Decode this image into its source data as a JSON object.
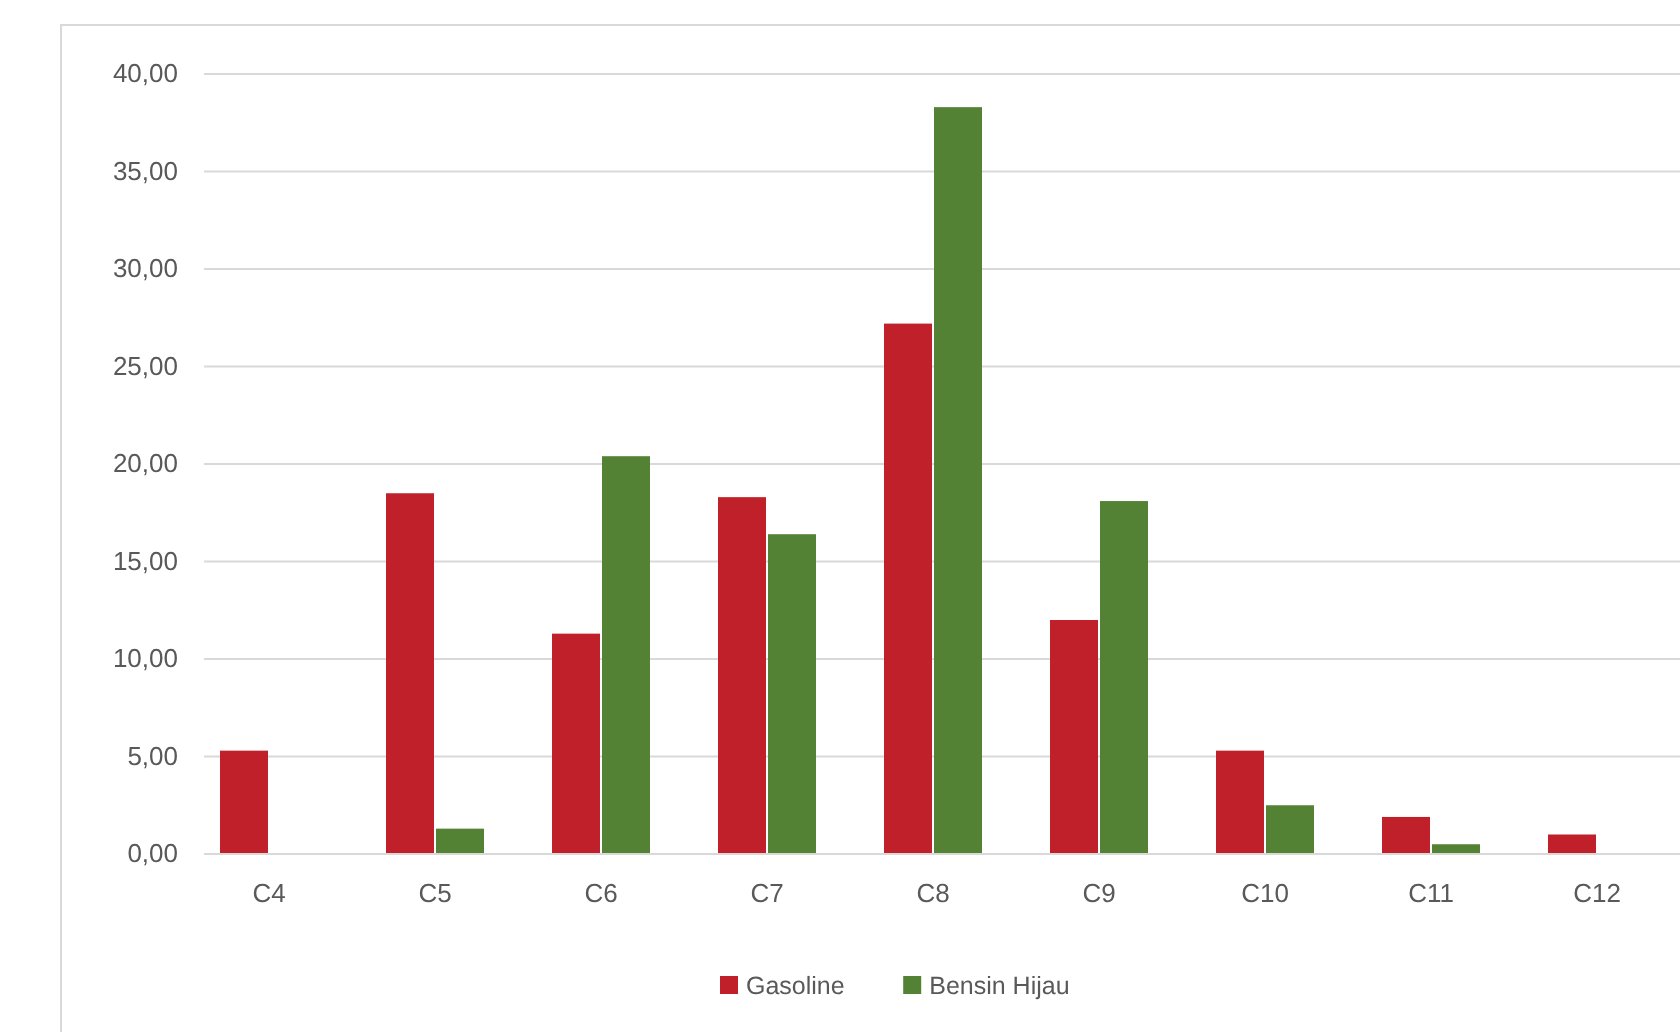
{
  "chart_data": {
    "type": "bar",
    "categories": [
      "C4",
      "C5",
      "C6",
      "C7",
      "C8",
      "C9",
      "C10",
      "C11",
      "C12"
    ],
    "series": [
      {
        "name": "Gasoline",
        "color": "#c0202a",
        "values": [
          5.3,
          18.5,
          11.3,
          18.3,
          27.2,
          12.0,
          5.3,
          1.9,
          1.0
        ]
      },
      {
        "name": "Bensin Hijau",
        "color": "#548235",
        "values": [
          null,
          1.3,
          20.4,
          16.4,
          38.3,
          18.1,
          2.5,
          0.5,
          null
        ]
      }
    ],
    "ylim": [
      0,
      40
    ],
    "yticks": [
      {
        "value": 0,
        "label": "0,00"
      },
      {
        "value": 5,
        "label": "5,00"
      },
      {
        "value": 10,
        "label": "10,00"
      },
      {
        "value": 15,
        "label": "15,00"
      },
      {
        "value": 20,
        "label": "20,00"
      },
      {
        "value": 25,
        "label": "25,00"
      },
      {
        "value": 30,
        "label": "30,00"
      },
      {
        "value": 35,
        "label": "35,00"
      },
      {
        "value": 40,
        "label": "40,00"
      }
    ],
    "grid": "y",
    "legend": "bottom"
  }
}
